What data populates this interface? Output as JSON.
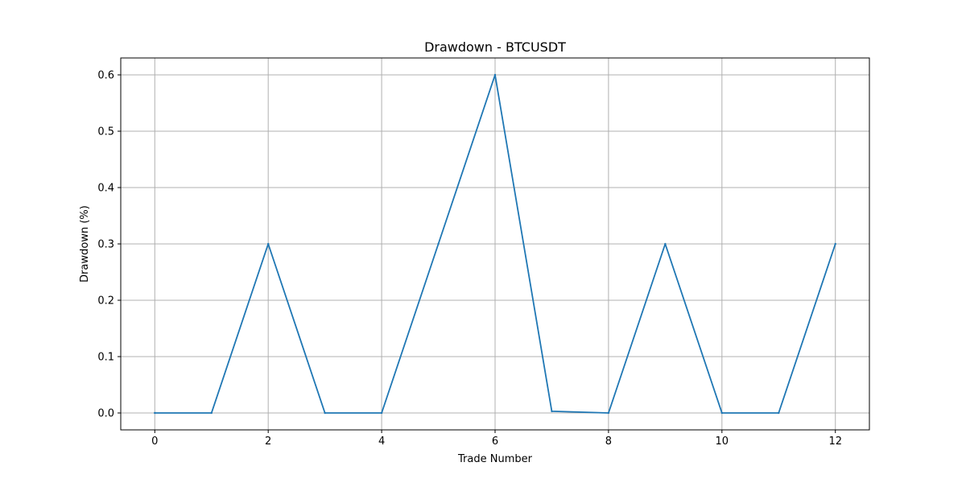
{
  "chart_data": {
    "type": "line",
    "title": "Drawdown - BTCUSDT",
    "xlabel": "Trade Number",
    "ylabel": "Drawdown (%)",
    "xlim": [
      -0.6,
      12.6
    ],
    "ylim": [
      -0.03,
      0.63
    ],
    "x_ticks": [
      0,
      2,
      4,
      6,
      8,
      10,
      12
    ],
    "x_tick_labels": [
      "0",
      "2",
      "4",
      "6",
      "8",
      "10",
      "12"
    ],
    "y_ticks": [
      0.0,
      0.1,
      0.2,
      0.3,
      0.4,
      0.5,
      0.6
    ],
    "y_tick_labels": [
      "0.0",
      "0.1",
      "0.2",
      "0.3",
      "0.4",
      "0.5",
      "0.6"
    ],
    "grid": true,
    "series": [
      {
        "color": "#1f77b4",
        "x": [
          0,
          1,
          2,
          3,
          4,
          5,
          6,
          7,
          8,
          9,
          10,
          11,
          12
        ],
        "y": [
          0.0,
          0.0,
          0.3,
          0.0,
          0.0,
          0.3,
          0.6,
          0.003,
          0.0,
          0.3,
          0.0,
          0.0,
          0.3
        ]
      }
    ]
  }
}
